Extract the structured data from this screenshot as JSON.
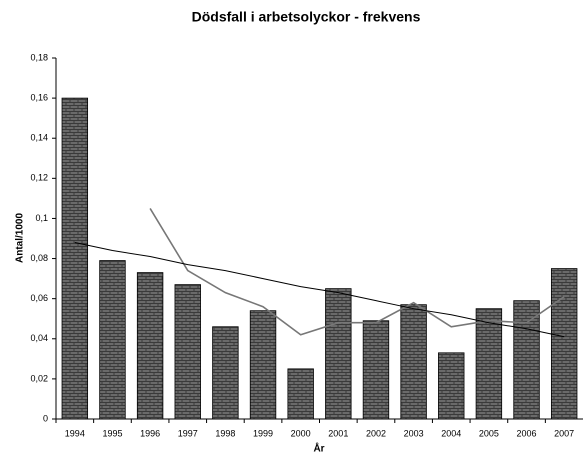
{
  "chart_data": {
    "type": "bar",
    "title": "Dödsfall i arbetsolyckor - frekvens",
    "x_label": "År",
    "y_label": "Antal/1000",
    "categories": [
      "1994",
      "1995",
      "1996",
      "1997",
      "1998",
      "1999",
      "2000",
      "2001",
      "2002",
      "2003",
      "2004",
      "2005",
      "2006",
      "2007"
    ],
    "values": [
      0.16,
      0.079,
      0.073,
      0.067,
      0.046,
      0.054,
      0.025,
      0.065,
      0.049,
      0.057,
      0.033,
      0.055,
      0.059,
      0.075
    ],
    "color": "#555555",
    "lines": [
      {
        "color": "#777777",
        "values": [
          null,
          null,
          0.105,
          0.074,
          0.063,
          0.056,
          0.042,
          0.048,
          0.048,
          0.058,
          0.046,
          0.049,
          0.048,
          0.061
        ]
      },
      {
        "color": "#000000",
        "values": [
          0.088,
          0.084,
          0.081,
          0.077,
          0.074,
          0.07,
          0.066,
          0.063,
          0.059,
          0.055,
          0.052,
          0.048,
          0.045,
          0.041
        ]
      }
    ],
    "ylim": [
      0,
      0.18
    ],
    "yticks": [
      0,
      {
        "value": 0.02,
        "label": "0,02"
      },
      {
        "value": 0.04,
        "label": "0,04"
      },
      {
        "value": 0.06,
        "label": "0,06"
      },
      {
        "value": 0.08,
        "label": "0,08"
      },
      {
        "value": 0.1,
        "label": "0,1"
      },
      {
        "value": 0.12,
        "label": "0,12"
      },
      {
        "value": 0.14,
        "label": "0,14"
      },
      {
        "value": 0.16,
        "label": "0,16"
      },
      {
        "value": 0.18,
        "label": "0,18"
      }
    ],
    "grid": false
  }
}
